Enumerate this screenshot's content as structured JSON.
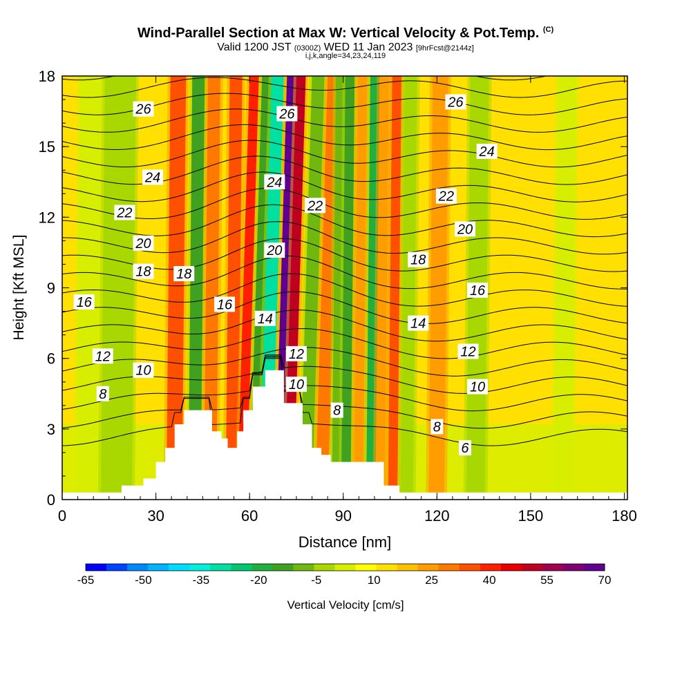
{
  "title": {
    "main": "Wind-Parallel Section at Max W: Vertical Velocity & Pot.Temp.",
    "copyright": "(C)",
    "valid": "Valid 1200 JST",
    "valid_z": "(0300Z)",
    "date": "WED 11 Jan 2023",
    "fcst": "[9hrFcst@2144z]",
    "indices": "i,j,k,angle=34,23,24,119"
  },
  "chart_data": {
    "type": "heatmap",
    "xlabel": "Distance [nm]",
    "ylabel": "Height [Kft MSL]",
    "xlim": [
      0,
      181
    ],
    "ylim": [
      0,
      18
    ],
    "x_ticks": [
      0,
      30,
      60,
      90,
      120,
      150,
      180
    ],
    "y_ticks": [
      0,
      3,
      6,
      9,
      12,
      15,
      18
    ],
    "colorbar": {
      "label": "Vertical Velocity [cm/s]",
      "min": -65,
      "max": 70,
      "step": 5,
      "tick_labels": [
        "-65",
        "-50",
        "-35",
        "-20",
        "-5",
        "10",
        "25",
        "40",
        "55",
        "70"
      ],
      "colors": [
        "#0000ff",
        "#0044ff",
        "#0088ff",
        "#00b4ff",
        "#00dcff",
        "#00f0dc",
        "#00e0a0",
        "#00c870",
        "#20b040",
        "#40a020",
        "#70b810",
        "#a8d800",
        "#d8ee00",
        "#ffff00",
        "#ffe000",
        "#ffc000",
        "#ff9c00",
        "#ff7800",
        "#ff5000",
        "#ff2000",
        "#e80000",
        "#c00020",
        "#a00050",
        "#800070",
        "#600090"
      ]
    },
    "terrain_kft": [
      [
        0,
        0.3
      ],
      [
        19,
        0.3
      ],
      [
        19,
        0.6
      ],
      [
        26,
        0.6
      ],
      [
        26,
        0.9
      ],
      [
        30,
        0.9
      ],
      [
        30,
        1.6
      ],
      [
        33,
        1.6
      ],
      [
        33,
        2.2
      ],
      [
        36,
        2.2
      ],
      [
        36,
        3.2
      ],
      [
        39,
        3.2
      ],
      [
        39,
        3.8
      ],
      [
        48,
        3.8
      ],
      [
        48,
        2.9
      ],
      [
        51,
        2.9
      ],
      [
        51,
        2.6
      ],
      [
        53,
        2.6
      ],
      [
        53,
        2.2
      ],
      [
        56,
        2.2
      ],
      [
        56,
        2.9
      ],
      [
        58,
        2.9
      ],
      [
        58,
        3.8
      ],
      [
        61,
        3.8
      ],
      [
        61,
        4.8
      ],
      [
        65,
        4.8
      ],
      [
        65,
        5.5
      ],
      [
        71,
        5.5
      ],
      [
        71,
        4.1
      ],
      [
        77,
        4.1
      ],
      [
        77,
        3.2
      ],
      [
        80,
        3.2
      ],
      [
        80,
        2.2
      ],
      [
        83,
        2.2
      ],
      [
        83,
        1.9
      ],
      [
        86,
        1.9
      ],
      [
        86,
        1.6
      ],
      [
        103,
        1.6
      ],
      [
        103,
        0.6
      ],
      [
        108,
        0.6
      ],
      [
        108,
        0.3
      ],
      [
        181,
        0.3
      ]
    ],
    "theta_contours": [
      {
        "label": "26",
        "value": 26,
        "x": 26,
        "y": 16.6
      },
      {
        "label": "24",
        "value": 24,
        "x": 29,
        "y": 13.7
      },
      {
        "label": "22",
        "value": 22,
        "x": 20,
        "y": 12.2
      },
      {
        "label": "20",
        "value": 20,
        "x": 26,
        "y": 10.9
      },
      {
        "label": "18",
        "value": 18,
        "x": 26,
        "y": 9.7
      },
      {
        "label": "18",
        "value": 18,
        "x": 39,
        "y": 9.6
      },
      {
        "label": "16",
        "value": 16,
        "x": 7,
        "y": 8.4
      },
      {
        "label": "16",
        "value": 16,
        "x": 52,
        "y": 8.3
      },
      {
        "label": "14",
        "value": 14,
        "x": 65,
        "y": 7.7
      },
      {
        "label": "12",
        "value": 12,
        "x": 13,
        "y": 6.1
      },
      {
        "label": "10",
        "value": 10,
        "x": 26,
        "y": 5.5
      },
      {
        "label": "8",
        "value": 8,
        "x": 13,
        "y": 4.5
      },
      {
        "label": "26",
        "value": 26,
        "x": 72,
        "y": 16.4
      },
      {
        "label": "24",
        "value": 24,
        "x": 68,
        "y": 13.5
      },
      {
        "label": "20",
        "value": 20,
        "x": 68,
        "y": 10.6
      },
      {
        "label": "22",
        "value": 22,
        "x": 81,
        "y": 12.5
      },
      {
        "label": "12",
        "value": 12,
        "x": 75,
        "y": 6.2
      },
      {
        "label": "10",
        "value": 10,
        "x": 75,
        "y": 4.9
      },
      {
        "label": "8",
        "value": 8,
        "x": 88,
        "y": 3.8
      },
      {
        "label": "26",
        "value": 26,
        "x": 126,
        "y": 16.9
      },
      {
        "label": "24",
        "value": 24,
        "x": 136,
        "y": 14.8
      },
      {
        "label": "22",
        "value": 22,
        "x": 123,
        "y": 12.9
      },
      {
        "label": "20",
        "value": 20,
        "x": 129,
        "y": 11.5
      },
      {
        "label": "18",
        "value": 18,
        "x": 114,
        "y": 10.2
      },
      {
        "label": "16",
        "value": 16,
        "x": 133,
        "y": 8.9
      },
      {
        "label": "14",
        "value": 14,
        "x": 114,
        "y": 7.5
      },
      {
        "label": "12",
        "value": 12,
        "x": 130,
        "y": 6.3
      },
      {
        "label": "10",
        "value": 10,
        "x": 133,
        "y": 4.8
      },
      {
        "label": "8",
        "value": 8,
        "x": 120,
        "y": 3.1
      },
      {
        "label": "6",
        "value": 6,
        "x": 129,
        "y": 2.2
      }
    ],
    "contour_levels": [
      6,
      7,
      8,
      9,
      10,
      11,
      12,
      13,
      14,
      15,
      16,
      17,
      18,
      19,
      20,
      21,
      22,
      23,
      24,
      25,
      26,
      27
    ],
    "velocity_bands": [
      {
        "x": 5,
        "w": 7,
        "v": -5
      },
      {
        "x": 13,
        "w": 10,
        "v": -10
      },
      {
        "x": 34,
        "w": 5,
        "v": 25
      },
      {
        "x": 41,
        "w": 4,
        "v": -20
      },
      {
        "x": 46,
        "w": 4,
        "v": 20
      },
      {
        "x": 53,
        "w": 4,
        "v": 25
      },
      {
        "x": 58,
        "w": 3,
        "v": 30
      },
      {
        "x": 62,
        "w": 3,
        "v": -20
      },
      {
        "x": 65,
        "w": 4,
        "v": -35
      },
      {
        "x": 70,
        "w": 3,
        "v": 60
      },
      {
        "x": 73,
        "w": 3,
        "v": 40
      },
      {
        "x": 78,
        "w": 4,
        "v": -15
      },
      {
        "x": 83,
        "w": 4,
        "v": 20
      },
      {
        "x": 87,
        "w": 3,
        "v": -15
      },
      {
        "x": 90,
        "w": 3,
        "v": -20
      },
      {
        "x": 94,
        "w": 3,
        "v": 15
      },
      {
        "x": 98,
        "w": 3,
        "v": -25
      },
      {
        "x": 101,
        "w": 3,
        "v": 15
      },
      {
        "x": 105,
        "w": 3,
        "v": 25
      },
      {
        "x": 109,
        "w": 4,
        "v": -10
      },
      {
        "x": 118,
        "w": 5,
        "v": 15
      },
      {
        "x": 130,
        "w": 6,
        "v": -10
      },
      {
        "x": 158,
        "w": 6,
        "v": -5
      }
    ]
  }
}
